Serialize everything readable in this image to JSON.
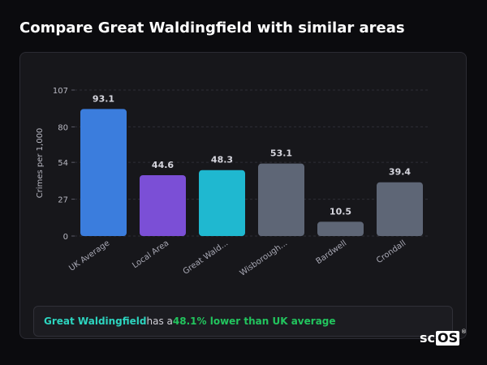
{
  "page": {
    "title": "Compare Great Waldingfield with similar areas"
  },
  "chart_data": {
    "type": "bar",
    "title": "",
    "xlabel": "",
    "ylabel": "Crimes per 1,000",
    "ylim": [
      0,
      107
    ],
    "yticks": [
      0,
      27,
      54,
      80,
      107
    ],
    "grid": true,
    "categories": [
      "UK Average",
      "Local Area",
      "Great Wald...",
      "Wisborough...",
      "Bardwell",
      "Crondall"
    ],
    "values": [
      93.1,
      44.6,
      48.3,
      53.1,
      10.5,
      39.4
    ],
    "value_labels": [
      "93.1",
      "44.6",
      "48.3",
      "53.1",
      "10.5",
      "39.4"
    ],
    "colors": [
      "#3b7ddd",
      "#7b4fd6",
      "#1fb8d0",
      "#5e6676",
      "#5e6676",
      "#5e6676"
    ]
  },
  "summary": {
    "place": "Great Waldingfield",
    "mid": " has a ",
    "highlight": "48.1% lower than UK average"
  },
  "colors": {
    "place": "#2dd4bf",
    "positive": "#22c55e",
    "background": "#0b0b0e",
    "card": "#17171b"
  },
  "logo": {
    "prefix": "sc",
    "boxed": "OS",
    "mark": "®"
  }
}
